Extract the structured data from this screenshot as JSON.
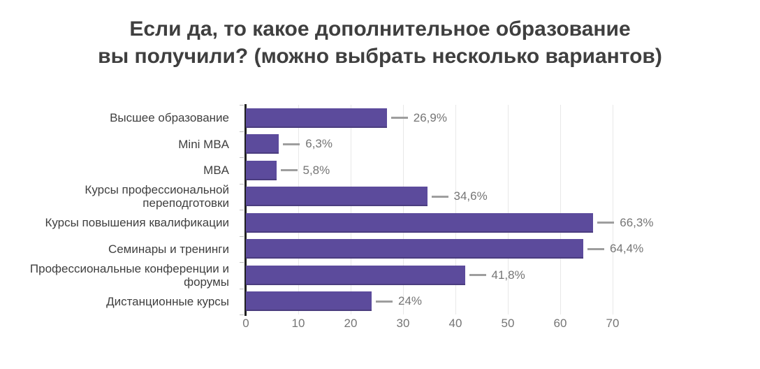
{
  "title": {
    "line1": "Если да, то какое дополнительное образование",
    "line2": "вы получили? (можно выбрать несколько вариантов)"
  },
  "chart_data": {
    "type": "bar",
    "orientation": "horizontal",
    "title": "Если да, то какое дополнительное образование вы получили? (можно выбрать несколько вариантов)",
    "categories": [
      "Высшее образование",
      "Mini MBA",
      "MBA",
      "Курсы профессиональной переподготовки",
      "Курсы повышения квалификации",
      "Семинары и тренинги",
      "Профессиональные конференции и форумы",
      "Дистанционные курсы"
    ],
    "values": [
      26.9,
      6.3,
      5.8,
      34.6,
      66.3,
      64.4,
      41.8,
      24
    ],
    "value_labels": [
      "26,9%",
      "6,3%",
      "5,8%",
      "34,6%",
      "66,3%",
      "64,4%",
      "41,8%",
      "24%"
    ],
    "xlabel": "",
    "ylabel": "",
    "xlim": [
      0,
      70
    ],
    "x_ticks": [
      "0",
      "10",
      "20",
      "30",
      "40",
      "50",
      "60",
      "70"
    ],
    "grid": true,
    "legend": false
  },
  "colors": {
    "bar": "#5C4B9C",
    "axis_line": "#212121",
    "gridline": "#E8E8E8",
    "connector": "#9E9E9E",
    "value_label": "#757575",
    "tick_label": "#757575",
    "category_label": "#3F3F3F",
    "title": "#3F3F3F"
  }
}
